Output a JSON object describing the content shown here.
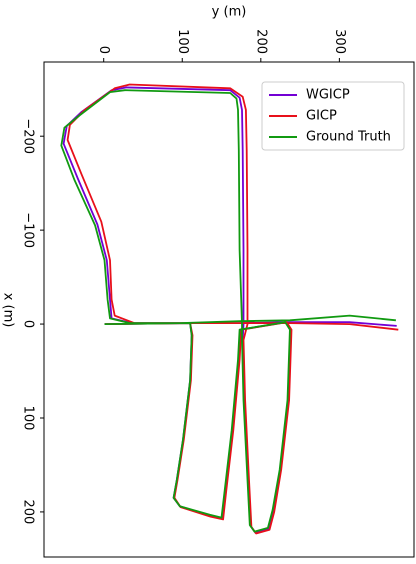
{
  "chart_data": {
    "type": "line",
    "x_axis": {
      "label": "x (m)",
      "lim": [
        -279,
        248
      ],
      "ticks": [
        {
          "value": -200,
          "label": "−200"
        },
        {
          "value": -100,
          "label": "−100"
        },
        0,
        100,
        200
      ]
    },
    "y_axis": {
      "label": "y (m)",
      "lim": [
        -76,
        395
      ],
      "ticks": [
        0,
        100,
        200,
        300
      ]
    },
    "legend": "upper right",
    "series": [
      {
        "name": "WGICP",
        "color": "#7300d4",
        "y": [
          1,
          110,
          112,
          110,
          101,
          93,
          89,
          97,
          135,
          151,
          155,
          164,
          172,
          174,
          232,
          238,
          235,
          225,
          216,
          210,
          193,
          187,
          184,
          179,
          177,
          178,
          178,
          177,
          176,
          173,
          161,
          29,
          10,
          -28,
          -47,
          -51,
          -33,
          -8,
          4,
          8,
          10,
          36,
          97,
          173,
          237,
          313,
          373
        ],
        "x": [
          0,
          -1,
          12,
          60,
          123,
          166,
          185,
          194,
          204,
          207,
          177,
          113,
          38,
          6,
          -2,
          6,
          81,
          155,
          199,
          218,
          222,
          215,
          166,
          81,
          17,
          0,
          -79,
          -185,
          -228,
          -241,
          -249,
          -252,
          -249,
          -226,
          -211,
          -192,
          -155,
          -106,
          -68,
          -26,
          -6,
          -1,
          -1,
          -1,
          -2,
          -2,
          2
        ]
      },
      {
        "name": "GICP",
        "color": "#e8101a",
        "y": [
          1,
          110,
          113,
          111,
          102,
          94,
          90,
          98,
          136,
          152,
          156,
          165,
          173,
          175,
          233,
          239,
          236,
          226,
          217,
          211,
          194,
          188,
          185,
          180,
          178,
          183,
          183,
          182,
          181,
          177,
          161,
          33,
          14,
          -24,
          -43,
          -46,
          -28,
          -3,
          8,
          10,
          14,
          39,
          97,
          173,
          237,
          313,
          375
        ],
        "x": [
          0,
          -1,
          12,
          60,
          123,
          166,
          185,
          195,
          205,
          208,
          177,
          113,
          38,
          6,
          -2,
          6,
          81,
          155,
          200,
          219,
          223,
          216,
          166,
          81,
          17,
          0,
          -79,
          -185,
          -228,
          -242,
          -251,
          -255,
          -251,
          -228,
          -212,
          -196,
          -159,
          -109,
          -68,
          -26,
          -9,
          -1,
          -1,
          -1,
          -1,
          0,
          6
        ]
      },
      {
        "name": "Ground Truth",
        "color": "#119a11",
        "y": [
          1,
          110,
          112,
          110,
          101,
          93,
          89,
          97,
          135,
          150,
          154,
          163,
          171,
          173,
          231,
          237,
          234,
          224,
          215,
          209,
          192,
          186,
          183,
          178,
          176,
          176,
          173,
          172,
          171,
          169,
          161,
          27,
          8,
          -31,
          -50,
          -54,
          -37,
          -11,
          1,
          5,
          8,
          33,
          97,
          173,
          237,
          313,
          372
        ],
        "x": [
          0,
          -1,
          12,
          60,
          123,
          166,
          185,
          194,
          203,
          206,
          177,
          113,
          38,
          6,
          -2,
          6,
          81,
          155,
          198,
          217,
          221,
          214,
          166,
          81,
          17,
          0,
          -79,
          -185,
          -228,
          -240,
          -246,
          -249,
          -247,
          -222,
          -209,
          -190,
          -153,
          -105,
          -68,
          -26,
          -6,
          -1,
          -1,
          -3,
          -4,
          -9,
          -4
        ]
      }
    ]
  }
}
